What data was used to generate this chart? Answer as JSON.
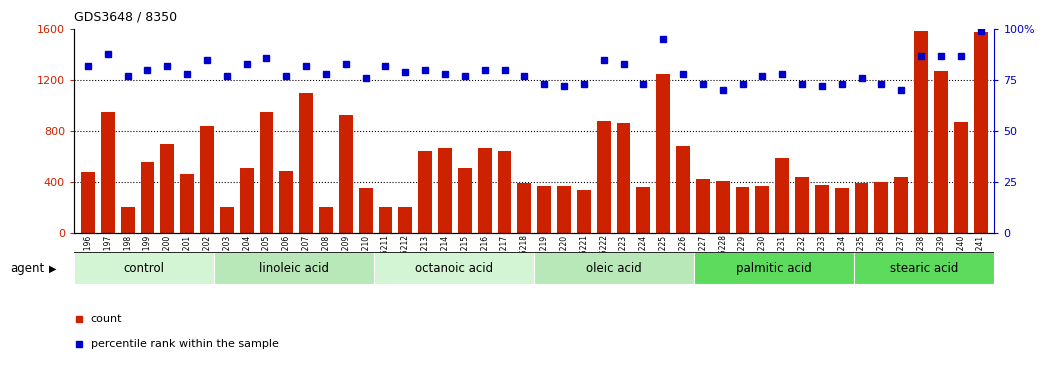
{
  "title": "GDS3648 / 8350",
  "samples": [
    "GSM525196",
    "GSM525197",
    "GSM525198",
    "GSM525199",
    "GSM525200",
    "GSM525201",
    "GSM525202",
    "GSM525203",
    "GSM525204",
    "GSM525205",
    "GSM525206",
    "GSM525207",
    "GSM525208",
    "GSM525209",
    "GSM525210",
    "GSM525211",
    "GSM525212",
    "GSM525213",
    "GSM525214",
    "GSM525215",
    "GSM525216",
    "GSM525217",
    "GSM525218",
    "GSM525219",
    "GSM525220",
    "GSM525221",
    "GSM525222",
    "GSM525223",
    "GSM525224",
    "GSM525225",
    "GSM525226",
    "GSM525227",
    "GSM525228",
    "GSM525229",
    "GSM525230",
    "GSM525231",
    "GSM525232",
    "GSM525233",
    "GSM525234",
    "GSM525235",
    "GSM525236",
    "GSM525237",
    "GSM525238",
    "GSM525239",
    "GSM525240",
    "GSM525241"
  ],
  "counts": [
    480,
    950,
    200,
    560,
    700,
    460,
    840,
    200,
    510,
    950,
    490,
    1100,
    200,
    930,
    350,
    200,
    200,
    640,
    670,
    510,
    670,
    640,
    390,
    370,
    370,
    340,
    880,
    860,
    360,
    1250,
    680,
    420,
    410,
    360,
    370,
    590,
    440,
    380,
    350,
    390,
    400,
    440,
    1590,
    1270,
    870,
    1580
  ],
  "percentile_ranks": [
    82,
    88,
    77,
    80,
    82,
    78,
    85,
    77,
    83,
    86,
    77,
    82,
    78,
    83,
    76,
    82,
    79,
    80,
    78,
    77,
    80,
    80,
    77,
    73,
    72,
    73,
    85,
    83,
    73,
    95,
    78,
    73,
    70,
    73,
    77,
    78,
    73,
    72,
    73,
    76,
    73,
    70,
    87,
    87,
    87,
    99
  ],
  "groups": [
    {
      "label": "control",
      "start": 0,
      "end": 7
    },
    {
      "label": "linoleic acid",
      "start": 7,
      "end": 15
    },
    {
      "label": "octanoic acid",
      "start": 15,
      "end": 23
    },
    {
      "label": "oleic acid",
      "start": 23,
      "end": 31
    },
    {
      "label": "palmitic acid",
      "start": 31,
      "end": 39
    },
    {
      "label": "stearic acid",
      "start": 39,
      "end": 46
    }
  ],
  "bar_color": "#cc2200",
  "dot_color": "#0000cc",
  "group_colors": [
    "#ccffcc",
    "#bbeeaa",
    "#ccffcc",
    "#bbeeaa",
    "#44dd44",
    "#44dd44"
  ],
  "ylim_left": [
    0,
    1600
  ],
  "ylim_right": [
    0,
    100
  ],
  "yticks_left": [
    0,
    400,
    800,
    1200,
    1600
  ],
  "yticks_right": [
    0,
    25,
    50,
    75,
    100
  ],
  "grid_lines": [
    400,
    800,
    1200
  ]
}
